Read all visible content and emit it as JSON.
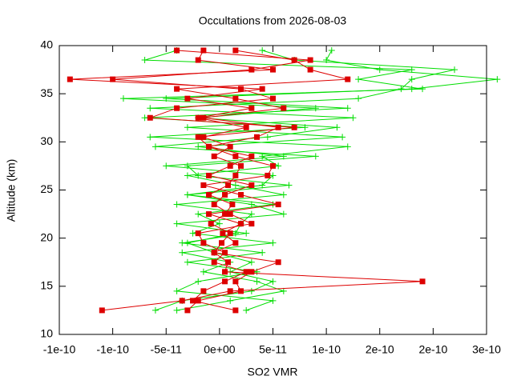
{
  "chart_data": {
    "type": "line",
    "title": "Occultations from 2026-08-03",
    "x_label": "SO2 VMR",
    "y_label": "Altitude (km)",
    "xlim": [
      -1.5e-10,
      2.5e-10
    ],
    "xticks": [
      {
        "value": -1.5e-10,
        "label": "-1e-10"
      },
      -1e-10,
      -5e-11,
      {
        "value": 0,
        "label": "0e+00"
      },
      5e-11,
      1e-10,
      {
        "value": 1.5e-10,
        "label": "2e-10"
      },
      2e-10,
      {
        "value": 2.5e-10,
        "label": "3e-10"
      }
    ],
    "ylim": [
      10,
      40
    ],
    "yticks": [
      10,
      15,
      20,
      25,
      30,
      35,
      40
    ],
    "grid": false,
    "y": [
      12.5,
      13.5,
      14.5,
      15.5,
      16.5,
      17.5,
      18.5,
      19.5,
      20.5,
      21.5,
      22.5,
      23.5,
      24.5,
      25.5,
      26.5,
      27.5,
      28.5,
      29.5,
      30.5,
      31.5,
      32.5,
      33.5,
      34.5,
      35.5,
      36.5,
      37.5,
      38.5,
      39.5
    ],
    "series": [
      {
        "color": "#00dd00",
        "marker": "plus",
        "x": [
          -6e-11,
          -3.5e-11,
          3e-11,
          5e-11,
          1e-11,
          3e-11,
          -5e-12,
          -3e-11,
          1.5e-11,
          2e-11,
          3e-11,
          -4e-11,
          6e-11,
          1.5e-11,
          -3e-11,
          5.5e-11,
          4e-11,
          1.2e-10,
          -6.5e-11,
          8e-11,
          -7e-11,
          1.2e-10,
          -5e-11,
          1.8e-10,
          2.6e-10,
          1.5e-10,
          1e-10,
          1.05e-10
        ]
      },
      {
        "color": "#00dd00",
        "marker": "plus",
        "x": [
          2.5e-11,
          5e-11,
          -4e-11,
          -2e-11,
          3.5e-11,
          -3e-11,
          4e-11,
          -3.5e-11,
          2.5e-11,
          -4e-11,
          6e-11,
          3e-11,
          -3e-11,
          4e-11,
          5e-11,
          -5e-11,
          6e-11,
          -2e-11,
          1.15e-10,
          -3e-11,
          1.25e-10,
          -6.5e-11,
          1.3e-10,
          1.7e-10,
          1.8e-10,
          2.2e-10,
          7e-11,
          4e-11
        ]
      },
      {
        "color": "#00dd00",
        "marker": "plus",
        "x": [
          -4e-11,
          1e-11,
          6e-11,
          3.5e-11,
          -1.5e-11,
          1e-11,
          -3.5e-11,
          5e-11,
          -2.5e-11,
          0,
          -2e-11,
          5e-11,
          -3e-11,
          6.5e-11,
          -2e-11,
          -3e-11,
          9e-11,
          -6e-11,
          4.5e-11,
          1.1e-10,
          -2e-11,
          9e-11,
          -9e-11,
          1.9e-10,
          1.3e-10,
          1.8e-10,
          -7e-11,
          -4e-11
        ]
      },
      {
        "color": "#dd0000",
        "marker": "square",
        "x": [
          -1.1e-10,
          -3.5e-11,
          1e-11,
          1.9e-10,
          5e-12,
          8e-12,
          -5e-12,
          2e-12,
          1e-11,
          -8e-12,
          5e-12,
          1.2e-11,
          -1e-11,
          8e-12,
          1.5e-11,
          2e-11,
          -5e-12,
          1e-11,
          -1.5e-11,
          2.5e-11,
          -2e-11,
          3e-11,
          -3e-11,
          4e-11,
          -1.4e-10,
          5e-11,
          -2e-11,
          -1.5e-11
        ]
      },
      {
        "color": "#dd0000",
        "marker": "square",
        "x": [
          -3e-11,
          -2e-11,
          2e-11,
          1.5e-11,
          3e-11,
          5.5e-11,
          -5e-12,
          1.5e-11,
          3e-12,
          2e-11,
          -1e-11,
          5.5e-11,
          2e-11,
          -1.5e-11,
          4.5e-11,
          5e-11,
          1.5e-11,
          -1e-11,
          3.5e-11,
          5.5e-11,
          -1.5e-11,
          6e-11,
          1.5e-11,
          -4e-11,
          1.2e-10,
          8.5e-11,
          7e-11,
          1.5e-11
        ]
      },
      {
        "color": "#dd0000",
        "marker": "square",
        "x": [
          1.5e-11,
          -2.5e-11,
          -1.5e-11,
          5e-12,
          2.5e-11,
          -5e-12,
          5e-12,
          -1.5e-11,
          -2e-11,
          3e-11,
          1e-11,
          -5e-12,
          5e-12,
          3e-11,
          -1e-11,
          1e-11,
          3e-11,
          -1e-11,
          -2e-11,
          7e-11,
          -6.5e-11,
          -4e-11,
          5e-11,
          2e-11,
          -1e-10,
          3e-11,
          8.5e-11,
          -4e-11
        ]
      }
    ]
  }
}
